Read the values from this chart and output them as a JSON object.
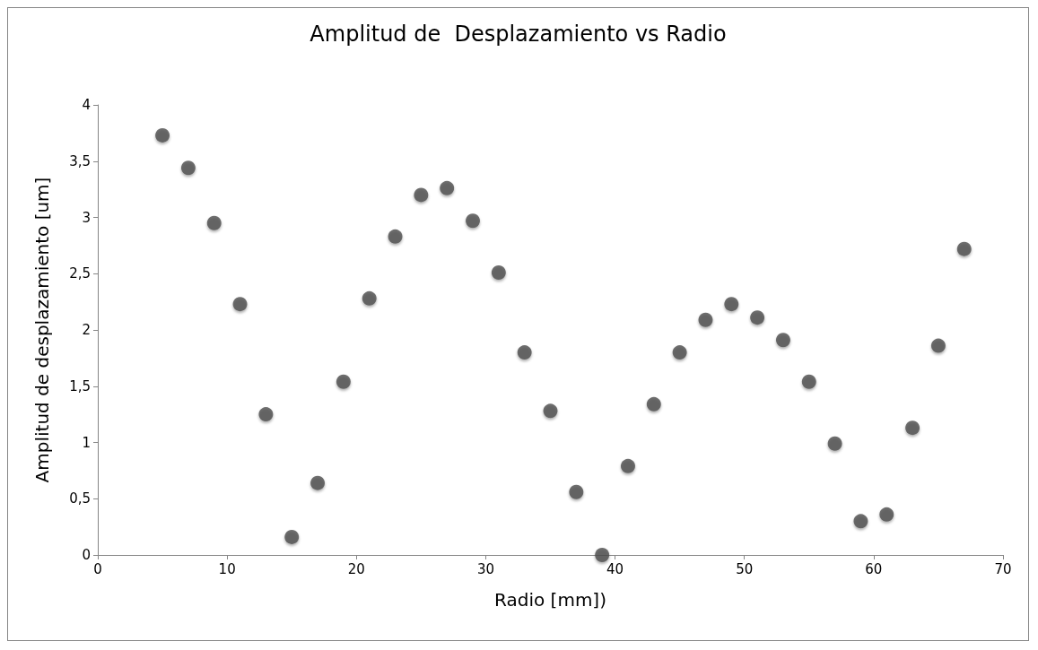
{
  "chart_data": {
    "type": "scatter",
    "title": "Amplitud de  Desplazamiento vs Radio",
    "xlabel": "Radio [mm])",
    "ylabel": "Amplitud de desplazamiento [um]",
    "x": [
      5,
      7,
      9,
      11,
      13,
      15,
      17,
      19,
      21,
      23,
      25,
      27,
      29,
      31,
      33,
      35,
      37,
      39,
      41,
      43,
      45,
      47,
      49,
      51,
      53,
      55,
      57,
      59,
      61,
      63,
      65,
      67
    ],
    "series": [
      {
        "color": "#4d4d4d",
        "values": [
          3.73,
          3.44,
          2.95,
          2.23,
          1.25,
          0.16,
          0.64,
          1.54,
          2.28,
          2.83,
          3.2,
          3.26,
          2.97,
          2.51,
          1.8,
          1.28,
          0.56,
          0,
          0.79,
          1.34,
          1.8,
          2.09,
          2.23,
          2.11,
          1.91,
          1.54,
          0.99,
          0.3,
          0.36,
          1.13,
          1.86,
          2.72
        ]
      }
    ],
    "xlim": [
      0,
      70
    ],
    "xticks": [
      0,
      10,
      20,
      30,
      40,
      50,
      60,
      70
    ],
    "ylim": [
      0,
      4
    ],
    "yticks": [
      0,
      {
        "value": 0.5,
        "label": "0,5"
      },
      1,
      {
        "value": 1.5,
        "label": "1,5"
      },
      2,
      {
        "value": 2.5,
        "label": "2,5"
      },
      3,
      {
        "value": 3.5,
        "label": "3,5"
      },
      4
    ],
    "marker": "circle"
  }
}
